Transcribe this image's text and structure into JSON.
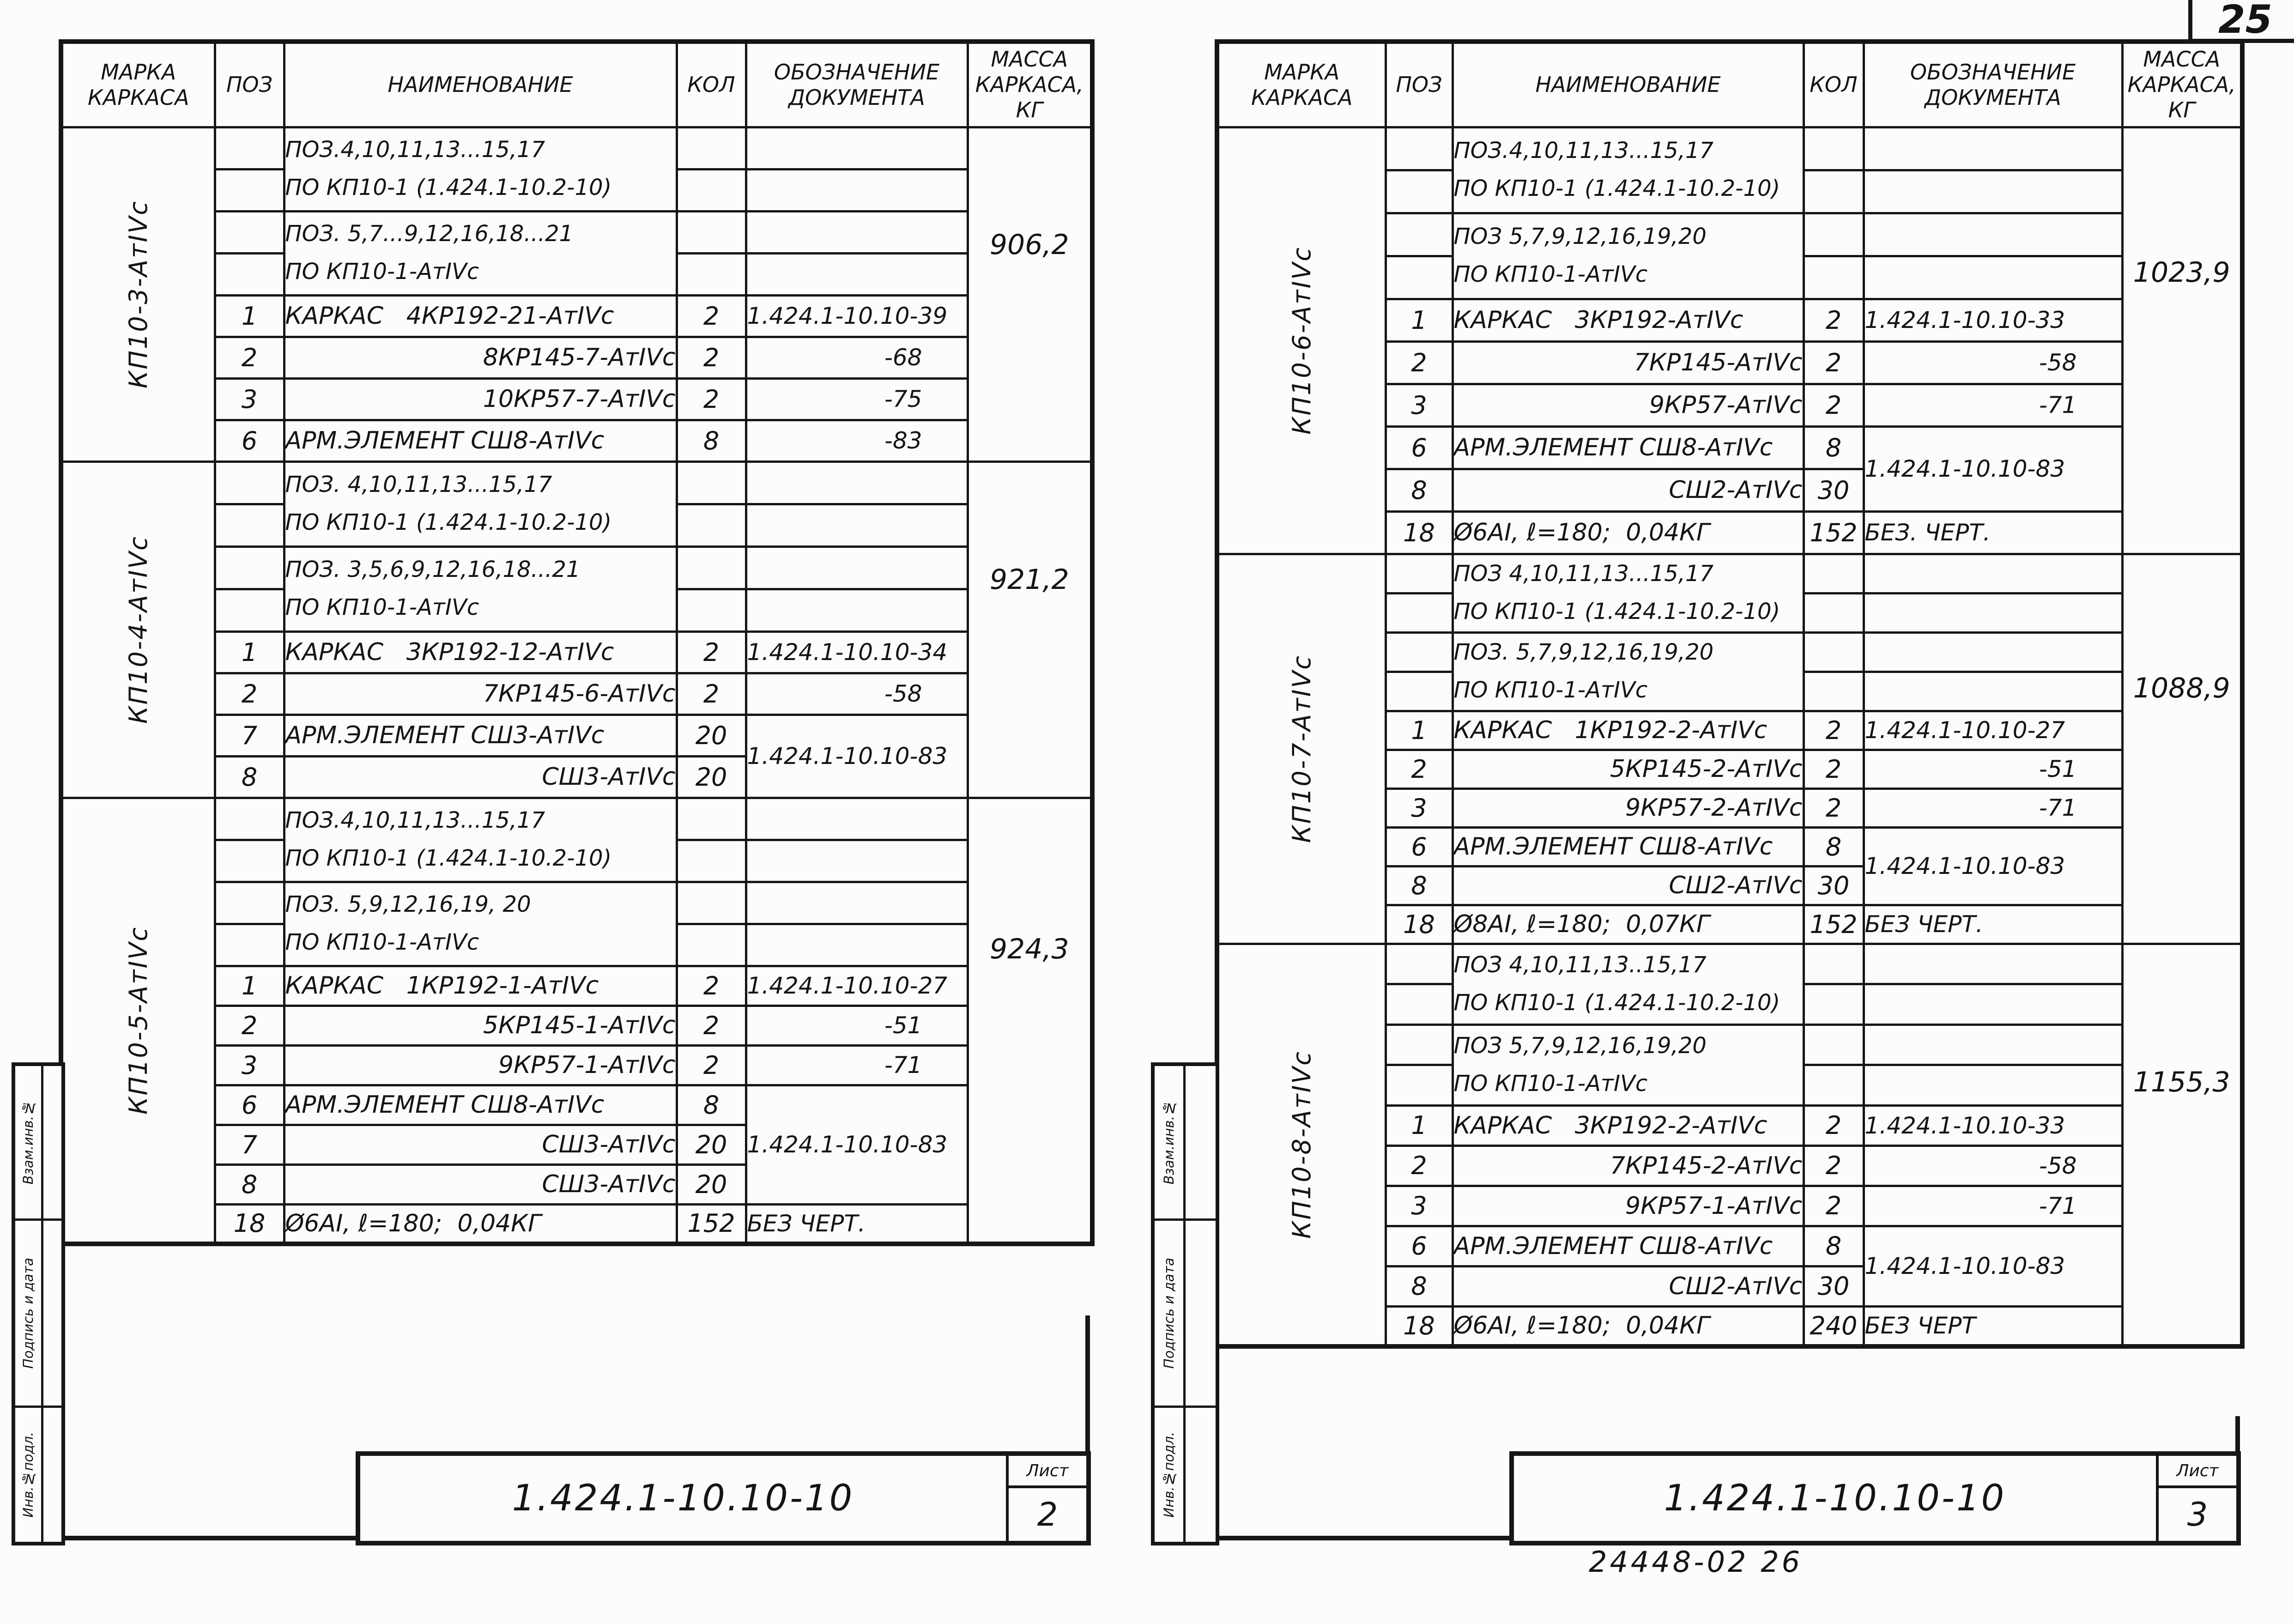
{
  "page": {
    "number": "25",
    "footer_code": "24448-02 26"
  },
  "column_headers": [
    "МАРКА\nКАРКАСА",
    "ПОЗ",
    "НАИМЕНОВАНИЕ",
    "КОЛ",
    "ОБОЗНАЧЕНИЕ\nДОКУМЕНТА",
    "МАССА\nКАРКАСА,\nКГ"
  ],
  "stamp_labels": [
    "Взам.инв.№",
    "Подпись и дата",
    "Инв.№подл."
  ],
  "tables": [
    {
      "title_block": {
        "doc_number": "1.424.1-10.10-10",
        "sheet_label": "Лист",
        "sheet_number": "2"
      },
      "sections": [
        {
          "marka": "КП10-3-АтIVс",
          "mass": "906,2",
          "notes": [
            [
              "ПОЗ.4,10,11,13...15,17",
              "ПО КП10-1 (1.424.1-10.2-10)"
            ],
            [
              "ПОЗ. 5,7...9,12,16,18...21",
              "ПО КП10-1-АтIVс"
            ]
          ],
          "items": [
            {
              "poz": "1",
              "name": "КАРКАС   4КР192-21-АтIVс",
              "qty": "2",
              "doc": "1.424.1-10.10-39",
              "doc_span": 1
            },
            {
              "poz": "2",
              "name": "8КР145-7-АтIVс",
              "qty": "2",
              "doc": "-68",
              "doc_span": 1
            },
            {
              "poz": "3",
              "name": "10КР57-7-АтIVс",
              "qty": "2",
              "doc": "-75",
              "doc_span": 1
            },
            {
              "poz": "6",
              "name": "АРМ.ЭЛЕМЕНТ СШ8-АтIVс",
              "qty": "8",
              "doc": "-83",
              "doc_span": 1
            }
          ]
        },
        {
          "marka": "КП10-4-АтIVс",
          "mass": "921,2",
          "notes": [
            [
              "ПОЗ. 4,10,11,13...15,17",
              "ПО КП10-1 (1.424.1-10.2-10)"
            ],
            [
              "ПОЗ. 3,5,6,9,12,16,18...21",
              "ПО КП10-1-АтIVс"
            ]
          ],
          "items": [
            {
              "poz": "1",
              "name": "КАРКАС   3КР192-12-АтIVс",
              "qty": "2",
              "doc": "1.424.1-10.10-34",
              "doc_span": 1
            },
            {
              "poz": "2",
              "name": "7КР145-6-АтIVс",
              "qty": "2",
              "doc": "-58",
              "doc_span": 1
            },
            {
              "poz": "7",
              "name": "АРМ.ЭЛЕМЕНТ СШ3-АтIVс",
              "qty": "20",
              "doc": "1.424.1-10.10-83",
              "doc_span": 2
            },
            {
              "poz": "8",
              "name": "СШ3-АтIVс",
              "qty": "20",
              "doc": null,
              "doc_span": 0
            }
          ]
        },
        {
          "marka": "КП10-5-АтIVс",
          "mass": "924,3",
          "notes": [
            [
              "ПОЗ.4,10,11,13...15,17",
              "ПО КП10-1 (1.424.1-10.2-10)"
            ],
            [
              "ПОЗ. 5,9,12,16,19, 20",
              "ПО КП10-1-АтIVс"
            ]
          ],
          "items": [
            {
              "poz": "1",
              "name": "КАРКАС   1КР192-1-АтIVс",
              "qty": "2",
              "doc": "1.424.1-10.10-27",
              "doc_span": 1
            },
            {
              "poz": "2",
              "name": "5КР145-1-АтIVс",
              "qty": "2",
              "doc": "-51",
              "doc_span": 1
            },
            {
              "poz": "3",
              "name": "9КР57-1-АтIVс",
              "qty": "2",
              "doc": "-71",
              "doc_span": 1
            },
            {
              "poz": "6",
              "name": "АРМ.ЭЛЕМЕНТ СШ8-АтIVс",
              "qty": "8",
              "doc": "1.424.1-10.10-83",
              "doc_span": 3
            },
            {
              "poz": "7",
              "name": "СШ3-АтIVс",
              "qty": "20",
              "doc": null,
              "doc_span": 0
            },
            {
              "poz": "8",
              "name": "СШ3-АтIVс",
              "qty": "20",
              "doc": null,
              "doc_span": 0
            },
            {
              "poz": "18",
              "name": "Ø6АI, ℓ=180;  0,04КГ",
              "qty": "152",
              "doc": "БЕЗ ЧЕРТ.",
              "doc_span": 1
            }
          ]
        }
      ]
    },
    {
      "title_block": {
        "doc_number": "1.424.1-10.10-10",
        "sheet_label": "Лист",
        "sheet_number": "3"
      },
      "sections": [
        {
          "marka": "КП10-6-АтIVс",
          "mass": "1023,9",
          "notes": [
            [
              "ПОЗ.4,10,11,13...15,17",
              "ПО КП10-1 (1.424.1-10.2-10)"
            ],
            [
              "ПОЗ 5,7,9,12,16,19,20",
              "ПО КП10-1-АтIVс"
            ]
          ],
          "items": [
            {
              "poz": "1",
              "name": "КАРКАС   3КР192-АтIVс",
              "qty": "2",
              "doc": "1.424.1-10.10-33",
              "doc_span": 1
            },
            {
              "poz": "2",
              "name": "7КР145-АтIVс",
              "qty": "2",
              "doc": "-58",
              "doc_span": 1
            },
            {
              "poz": "3",
              "name": "9КР57-АтIVс",
              "qty": "2",
              "doc": "-71",
              "doc_span": 1
            },
            {
              "poz": "6",
              "name": "АРМ.ЭЛЕМЕНТ СШ8-АтIVс",
              "qty": "8",
              "doc": "1.424.1-10.10-83",
              "doc_span": 2
            },
            {
              "poz": "8",
              "name": "СШ2-АтIVс",
              "qty": "30",
              "doc": null,
              "doc_span": 0
            },
            {
              "poz": "18",
              "name": "Ø6АI, ℓ=180;  0,04КГ",
              "qty": "152",
              "doc": "БЕЗ. ЧЕРТ.",
              "doc_span": 1
            }
          ]
        },
        {
          "marka": "КП10-7-АтIVс",
          "mass": "1088,9",
          "notes": [
            [
              "ПОЗ 4,10,11,13...15,17",
              "ПО КП10-1 (1.424.1-10.2-10)"
            ],
            [
              "ПОЗ. 5,7,9,12,16,19,20",
              "ПО КП10-1-АтIVс"
            ]
          ],
          "items": [
            {
              "poz": "1",
              "name": "КАРКАС   1КР192-2-АтIVс",
              "qty": "2",
              "doc": "1.424.1-10.10-27",
              "doc_span": 1
            },
            {
              "poz": "2",
              "name": "5КР145-2-АтIVс",
              "qty": "2",
              "doc": "-51",
              "doc_span": 1
            },
            {
              "poz": "3",
              "name": "9КР57-2-АтIVс",
              "qty": "2",
              "doc": "-71",
              "doc_span": 1
            },
            {
              "poz": "6",
              "name": "АРМ.ЭЛЕМЕНТ СШ8-АтIVс",
              "qty": "8",
              "doc": "1.424.1-10.10-83",
              "doc_span": 2
            },
            {
              "poz": "8",
              "name": "СШ2-АтIVс",
              "qty": "30",
              "doc": null,
              "doc_span": 0
            },
            {
              "poz": "18",
              "name": "Ø8АI, ℓ=180;  0,07КГ",
              "qty": "152",
              "doc": "БЕЗ ЧЕРТ.",
              "doc_span": 1
            }
          ]
        },
        {
          "marka": "КП10-8-АтIVс",
          "mass": "1155,3",
          "notes": [
            [
              "ПОЗ 4,10,11,13..15,17",
              "ПО КП10-1 (1.424.1-10.2-10)"
            ],
            [
              "ПОЗ 5,7,9,12,16,19,20",
              "ПО КП10-1-АтIVс"
            ]
          ],
          "items": [
            {
              "poz": "1",
              "name": "КАРКАС   3КР192-2-АтIVс",
              "qty": "2",
              "doc": "1.424.1-10.10-33",
              "doc_span": 1
            },
            {
              "poz": "2",
              "name": "7КР145-2-АтIVс",
              "qty": "2",
              "doc": "-58",
              "doc_span": 1
            },
            {
              "poz": "3",
              "name": "9КР57-1-АтIVс",
              "qty": "2",
              "doc": "-71",
              "doc_span": 1
            },
            {
              "poz": "6",
              "name": "АРМ.ЭЛЕМЕНТ СШ8-АтIVс",
              "qty": "8",
              "doc": "1.424.1-10.10-83",
              "doc_span": 2
            },
            {
              "poz": "8",
              "name": "СШ2-АтIVс",
              "qty": "30",
              "doc": null,
              "doc_span": 0
            },
            {
              "poz": "18",
              "name": "Ø6АI, ℓ=180;  0,04КГ",
              "qty": "240",
              "doc": "БЕЗ ЧЕРТ",
              "doc_span": 1
            }
          ]
        }
      ]
    }
  ]
}
